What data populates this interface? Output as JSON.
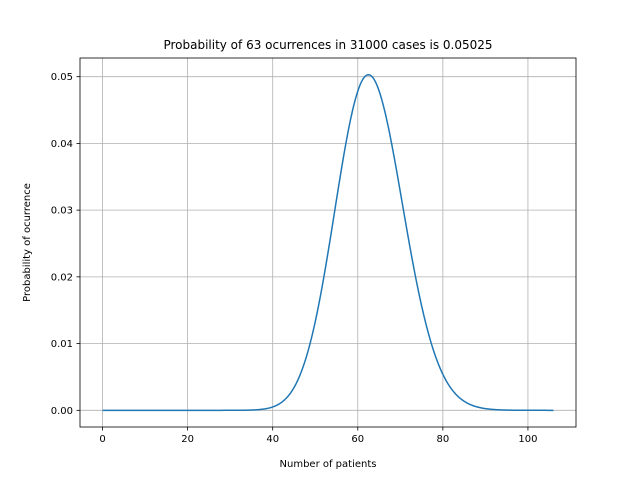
{
  "chart_data": {
    "type": "line",
    "title": "Probability of 63 ocurrences in 31000 cases is 0.05025",
    "xlabel": "Number of patients",
    "ylabel": "Probability of ocurrence",
    "xlim": [
      -5.3,
      111.3
    ],
    "ylim": [
      -0.0025,
      0.0528
    ],
    "xticks": [
      0,
      20,
      40,
      60,
      80,
      100
    ],
    "yticks": [
      0.0,
      0.01,
      0.02,
      0.03,
      0.04,
      0.05
    ],
    "xtick_labels": [
      "0",
      "20",
      "40",
      "60",
      "80",
      "100"
    ],
    "ytick_labels": [
      "0.00",
      "0.01",
      "0.02",
      "0.03",
      "0.04",
      "0.05"
    ],
    "grid": true,
    "line_color": "#1f77b4",
    "series": [
      {
        "distribution": "poisson",
        "mean": 63,
        "x_range": [
          0,
          106
        ]
      }
    ]
  }
}
